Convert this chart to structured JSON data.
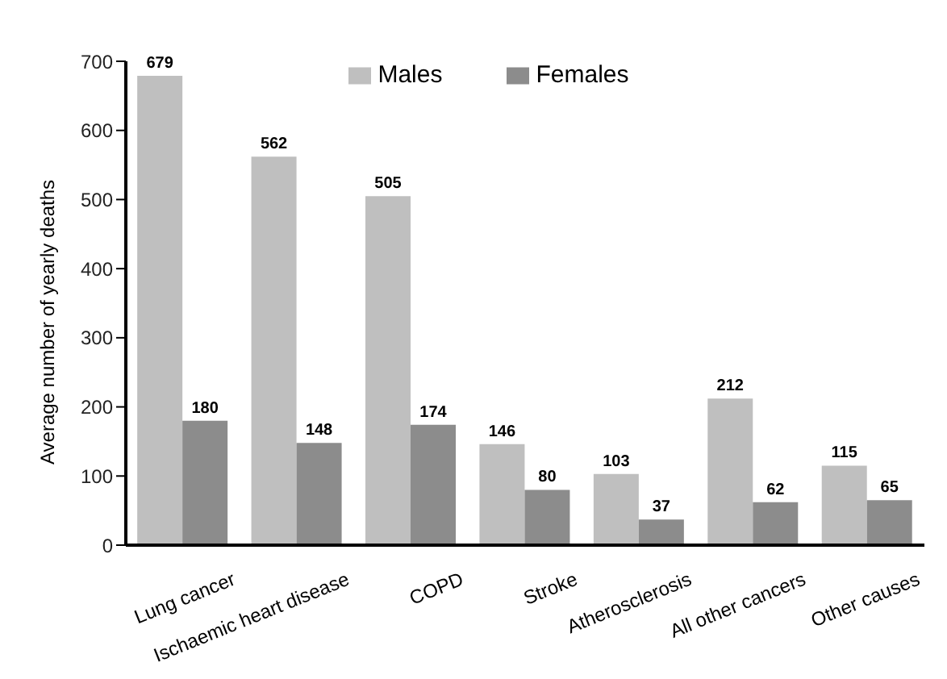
{
  "chart_data": {
    "type": "bar",
    "ylabel": "Average number of yearly deaths",
    "categories": [
      "Lung cancer",
      "Ischaemic heart disease",
      "COPD",
      "Stroke",
      "Atherosclerosis",
      "All other cancers",
      "Other causes"
    ],
    "series": [
      {
        "name": "Males",
        "color": "#bfbfbf",
        "values": [
          679,
          562,
          505,
          146,
          103,
          212,
          115
        ]
      },
      {
        "name": "Females",
        "color": "#8c8c8c",
        "values": [
          180,
          148,
          174,
          80,
          37,
          62,
          65
        ]
      }
    ],
    "ylim": [
      0,
      700
    ],
    "yticks": [
      0,
      100,
      200,
      300,
      400,
      500,
      600,
      700
    ],
    "grid": false,
    "legend": "top",
    "data_labels": true
  }
}
